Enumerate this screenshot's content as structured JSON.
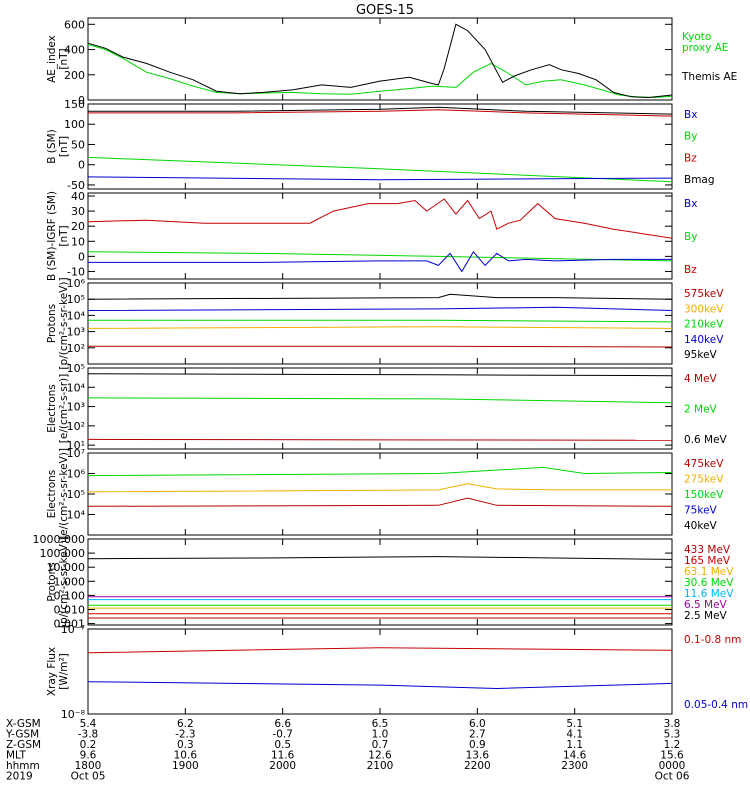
{
  "title": "GOES-15",
  "colors": {
    "black": "#000000",
    "green": "#00d800",
    "red": "#c80000",
    "blue": "#0000d0",
    "orange": "#f0b000",
    "cyan": "#00b4ff",
    "dkred": "#b40000",
    "magenta": "#c800c8",
    "purple": "#a000a0"
  },
  "chart_data": [
    {
      "id": "ae",
      "type": "line",
      "ylabel": [
        "AE_index",
        "[nT]"
      ],
      "ylim": [
        0,
        650
      ],
      "yscale": "linear",
      "ticks": [
        {
          "v": 0,
          "t": "0"
        },
        {
          "v": 200,
          "t": "200"
        },
        {
          "v": 400,
          "t": "400"
        },
        {
          "v": 600,
          "t": "600"
        }
      ],
      "series": [
        {
          "name": "Kyoto proxy AE",
          "name_lines": [
            "Kyoto",
            "proxy AE"
          ],
          "color": "green",
          "x": [
            0,
            0.03,
            0.06,
            0.1,
            0.14,
            0.18,
            0.22,
            0.26,
            0.3,
            0.35,
            0.4,
            0.45,
            0.5,
            0.55,
            0.59,
            0.63,
            0.66,
            0.69,
            0.72,
            0.75,
            0.78,
            0.81,
            0.85,
            0.88,
            0.91,
            0.94,
            0.97,
            1
          ],
          "y": [
            440,
            400,
            330,
            220,
            170,
            110,
            60,
            50,
            55,
            60,
            50,
            45,
            70,
            90,
            110,
            100,
            220,
            290,
            210,
            120,
            150,
            160,
            120,
            80,
            40,
            25,
            20,
            30
          ]
        },
        {
          "name": "Themis AE",
          "color": "black",
          "x": [
            0,
            0.03,
            0.06,
            0.1,
            0.14,
            0.18,
            0.22,
            0.26,
            0.3,
            0.35,
            0.4,
            0.45,
            0.5,
            0.55,
            0.59,
            0.6,
            0.61,
            0.63,
            0.65,
            0.68,
            0.71,
            0.73,
            0.76,
            0.79,
            0.81,
            0.84,
            0.87,
            0.9,
            0.93,
            0.96,
            1
          ],
          "y": [
            450,
            410,
            340,
            290,
            220,
            160,
            70,
            50,
            60,
            80,
            120,
            100,
            150,
            180,
            130,
            120,
            250,
            600,
            550,
            400,
            140,
            190,
            240,
            280,
            240,
            210,
            160,
            60,
            25,
            20,
            40
          ]
        }
      ]
    },
    {
      "id": "bsm",
      "type": "line",
      "ylabel": [
        "B (SM)",
        "[nT]"
      ],
      "ylim": [
        -60,
        150
      ],
      "yscale": "linear",
      "ticks": [
        {
          "v": -50,
          "t": "-50"
        },
        {
          "v": 0,
          "t": "0"
        },
        {
          "v": 50,
          "t": "50"
        },
        {
          "v": 100,
          "t": "100"
        },
        {
          "v": 150,
          "t": "150"
        }
      ],
      "legend": [
        {
          "name": "Bx",
          "color": "blue"
        },
        {
          "name": "By",
          "color": "green"
        },
        {
          "name": "Bz",
          "color": "red"
        },
        {
          "name": "Bmag",
          "color": "black"
        }
      ],
      "series": [
        {
          "name": "Bmag",
          "color": "black",
          "x": [
            0,
            0.25,
            0.5,
            0.6,
            0.75,
            1
          ],
          "y": [
            132,
            132,
            137,
            142,
            132,
            125
          ]
        },
        {
          "name": "Bz",
          "color": "red",
          "x": [
            0,
            0.25,
            0.5,
            0.6,
            0.75,
            1
          ],
          "y": [
            128,
            128,
            132,
            136,
            128,
            120
          ]
        },
        {
          "name": "By",
          "color": "green",
          "x": [
            0,
            0.5,
            1
          ],
          "y": [
            18,
            -10,
            -42
          ]
        },
        {
          "name": "Bx",
          "color": "blue",
          "x": [
            0,
            0.5,
            1
          ],
          "y": [
            -30,
            -37,
            -33
          ]
        }
      ]
    },
    {
      "id": "bigrf",
      "type": "line",
      "ylabel": [
        "B (SM)-IGRF (SM)",
        "[nT]"
      ],
      "ylim": [
        -15,
        42
      ],
      "yscale": "linear",
      "ticks": [
        {
          "v": -10,
          "t": "-10"
        },
        {
          "v": 0,
          "t": "0"
        },
        {
          "v": 10,
          "t": "10"
        },
        {
          "v": 20,
          "t": "20"
        },
        {
          "v": 30,
          "t": "30"
        },
        {
          "v": 40,
          "t": "40"
        }
      ],
      "legend": [
        {
          "name": "Bx",
          "color": "blue"
        },
        {
          "name": "By",
          "color": "green"
        },
        {
          "name": "Bz",
          "color": "red"
        }
      ],
      "series": [
        {
          "name": "Bz",
          "color": "red",
          "x": [
            0,
            0.1,
            0.2,
            0.3,
            0.38,
            0.42,
            0.48,
            0.53,
            0.56,
            0.58,
            0.61,
            0.63,
            0.65,
            0.67,
            0.69,
            0.7,
            0.72,
            0.74,
            0.77,
            0.8,
            0.85,
            0.9,
            0.95,
            1
          ],
          "y": [
            23,
            24,
            22,
            22,
            22,
            30,
            35,
            35,
            37,
            30,
            38,
            28,
            37,
            25,
            30,
            18,
            22,
            24,
            35,
            25,
            22,
            18,
            15,
            12
          ]
        },
        {
          "name": "By",
          "color": "green",
          "x": [
            0,
            0.3,
            0.6,
            1
          ],
          "y": [
            3,
            2,
            0,
            -3
          ]
        },
        {
          "name": "Bx",
          "color": "blue",
          "x": [
            0,
            0.3,
            0.5,
            0.55,
            0.58,
            0.6,
            0.62,
            0.64,
            0.66,
            0.68,
            0.7,
            0.72,
            0.75,
            0.8,
            0.9,
            1
          ],
          "y": [
            -4,
            -4,
            -3,
            -3,
            -3,
            -6,
            2,
            -10,
            3,
            -6,
            2,
            -3,
            -2,
            -3,
            -2,
            -2
          ]
        }
      ]
    },
    {
      "id": "protons1",
      "type": "line",
      "ylabel": [
        "Protons",
        "[p/(cm²-s-sr-keV)]"
      ],
      "ylim": [
        1,
        6
      ],
      "yscale": "log",
      "ticks": [
        {
          "v": 2,
          "t": "10²"
        },
        {
          "v": 3,
          "t": "10³"
        },
        {
          "v": 4,
          "t": "10⁴"
        },
        {
          "v": 5,
          "t": "10⁵"
        },
        {
          "v": 6,
          "t": "10⁶"
        }
      ],
      "legend": [
        {
          "name": "575keV",
          "color": "dkred"
        },
        {
          "name": "300keV",
          "color": "orange"
        },
        {
          "name": "210keV",
          "color": "green"
        },
        {
          "name": "140keV",
          "color": "blue"
        },
        {
          "name": "95keV",
          "color": "black"
        }
      ],
      "series": [
        {
          "name": "95keV",
          "color": "black",
          "x": [
            0,
            0.6,
            0.62,
            0.7,
            0.8,
            1
          ],
          "y": [
            5,
            5.1,
            5.3,
            5.1,
            5.1,
            5
          ]
        },
        {
          "name": "140keV",
          "color": "blue",
          "x": [
            0,
            0.6,
            0.8,
            1
          ],
          "y": [
            4.3,
            4.4,
            4.5,
            4.3
          ]
        },
        {
          "name": "210keV",
          "color": "green",
          "x": [
            0,
            0.6,
            1
          ],
          "y": [
            3.7,
            3.7,
            3.6
          ]
        },
        {
          "name": "300keV",
          "color": "orange",
          "x": [
            0,
            0.6,
            1
          ],
          "y": [
            3.2,
            3.3,
            3.2
          ]
        },
        {
          "name": "575keV",
          "color": "dkred",
          "x": [
            0,
            0.6,
            1
          ],
          "y": [
            2.1,
            2.1,
            2.05
          ]
        }
      ]
    },
    {
      "id": "electrons1",
      "type": "line",
      "ylabel": [
        "Electrons",
        "[e/(cm²-s-sr)]"
      ],
      "ylim": [
        0.8,
        5
      ],
      "yscale": "log",
      "ticks": [
        {
          "v": 1,
          "t": "10¹"
        },
        {
          "v": 2,
          "t": "10²"
        },
        {
          "v": 3,
          "t": "10³"
        },
        {
          "v": 4,
          "t": "10⁴"
        },
        {
          "v": 5,
          "t": "10⁵"
        }
      ],
      "legend": [
        {
          "name": "4 MeV",
          "color": "dkred"
        },
        {
          "name": "2 MeV",
          "color": "green"
        },
        {
          "name": "0.6 MeV",
          "color": "black"
        }
      ],
      "series": [
        {
          "name": "0.6 MeV",
          "color": "black",
          "x": [
            0,
            0.6,
            1
          ],
          "y": [
            4.7,
            4.65,
            4.6
          ]
        },
        {
          "name": "2 MeV",
          "color": "green",
          "x": [
            0,
            0.6,
            1
          ],
          "y": [
            3.45,
            3.4,
            3.2
          ]
        },
        {
          "name": "4 MeV",
          "color": "dkred",
          "x": [
            0,
            1
          ],
          "y": [
            1.3,
            1.25
          ]
        }
      ]
    },
    {
      "id": "electrons2",
      "type": "line",
      "ylabel": [
        "Electrons",
        "[e/(cm²-s-sr-keV)]"
      ],
      "ylim": [
        3,
        7
      ],
      "yscale": "log",
      "ticks": [
        {
          "v": 4,
          "t": "10⁴"
        },
        {
          "v": 5,
          "t": "10⁵"
        },
        {
          "v": 6,
          "t": "10⁶"
        },
        {
          "v": 7,
          "t": "10⁷"
        }
      ],
      "legend": [
        {
          "name": "475keV",
          "color": "dkred"
        },
        {
          "name": "275keV",
          "color": "orange"
        },
        {
          "name": "150keV",
          "color": "green"
        },
        {
          "name": "75keV",
          "color": "blue"
        },
        {
          "name": "40keV",
          "color": "black"
        }
      ],
      "series": [
        {
          "name": "150keV",
          "color": "green",
          "x": [
            0,
            0.6,
            0.78,
            0.85,
            1
          ],
          "y": [
            5.9,
            6,
            6.3,
            6,
            6.05
          ]
        },
        {
          "name": "275keV",
          "color": "orange",
          "x": [
            0,
            0.6,
            0.65,
            0.7,
            0.8,
            1
          ],
          "y": [
            5.1,
            5.2,
            5.5,
            5.25,
            5.2,
            5.2
          ]
        },
        {
          "name": "475keV",
          "color": "dkred",
          "x": [
            0,
            0.6,
            0.65,
            0.7,
            1
          ],
          "y": [
            4.4,
            4.45,
            4.8,
            4.45,
            4.4
          ]
        }
      ]
    },
    {
      "id": "protons2",
      "type": "line",
      "ylabel": [
        "Protons",
        "[p/(cm²-s-sr-keV)]"
      ],
      "ylim": [
        -3.1,
        3
      ],
      "yscale": "log",
      "ticks": [
        {
          "v": -3,
          "t": "0.001"
        },
        {
          "v": -2,
          "t": "0.010"
        },
        {
          "v": -1,
          "t": "0.100"
        },
        {
          "v": 0,
          "t": "1.000"
        },
        {
          "v": 1,
          "t": "10.000"
        },
        {
          "v": 2,
          "t": "100.000"
        },
        {
          "v": 3,
          "t": "1000.000"
        }
      ],
      "legend": [
        {
          "name": "433 MeV",
          "color": "dkred"
        },
        {
          "name": "165 MeV",
          "color": "red"
        },
        {
          "name": "63.1 MeV",
          "color": "orange"
        },
        {
          "name": "30.6 MeV",
          "color": "green"
        },
        {
          "name": "11.6 MeV",
          "color": "cyan"
        },
        {
          "name": "6.5 MeV",
          "color": "purple"
        },
        {
          "name": "2.5 MeV",
          "color": "black"
        }
      ],
      "series": [
        {
          "name": "2.5 MeV",
          "color": "black",
          "x": [
            0,
            0.3,
            0.6,
            0.8,
            1
          ],
          "y": [
            1.6,
            1.65,
            1.75,
            1.65,
            1.55
          ]
        },
        {
          "name": "6.5 MeV",
          "color": "purple",
          "x": [
            0,
            1
          ],
          "y": [
            -1.1,
            -1.1
          ]
        },
        {
          "name": "11.6 MeV",
          "color": "cyan",
          "x": [
            0,
            1
          ],
          "y": [
            -1.3,
            -1.3
          ]
        },
        {
          "name": "30.6 MeV",
          "color": "green",
          "x": [
            0,
            1
          ],
          "y": [
            -1.7,
            -1.7
          ]
        },
        {
          "name": "63.1 MeV",
          "color": "orange",
          "x": [
            0,
            1
          ],
          "y": [
            -1.9,
            -1.9
          ]
        },
        {
          "name": "165 MeV",
          "color": "red",
          "x": [
            0,
            1
          ],
          "y": [
            -2.3,
            -2.3
          ]
        },
        {
          "name": "433 MeV",
          "color": "dkred",
          "x": [
            0,
            1
          ],
          "y": [
            -2.6,
            -2.6
          ]
        }
      ]
    },
    {
      "id": "xray",
      "type": "line",
      "ylabel": [
        "Xray Flux",
        "[W/m²]"
      ],
      "ylim": [
        -8,
        -7
      ],
      "yscale": "log",
      "ticks": [
        {
          "v": -8,
          "t": "10⁻⁸"
        },
        {
          "v": -7,
          "t": "10⁻⁷"
        }
      ],
      "legend": [
        {
          "name": "0.1-0.8 nm",
          "color": "red"
        },
        {
          "name": "0.05-0.4 nm",
          "color": "blue"
        }
      ],
      "series": [
        {
          "name": "0.1-0.8 nm",
          "color": "red",
          "x": [
            0,
            0.5,
            1
          ],
          "y": [
            -7.28,
            -7.22,
            -7.25
          ]
        },
        {
          "name": "0.05-0.4 nm",
          "color": "blue",
          "x": [
            0,
            0.5,
            0.7,
            1
          ],
          "y": [
            -7.62,
            -7.66,
            -7.7,
            -7.64
          ]
        }
      ]
    }
  ],
  "xaxis": {
    "rows": [
      {
        "label": "X-GSM",
        "values": [
          "5.4",
          "6.2",
          "6.6",
          "6.5",
          "6.0",
          "5.1",
          "3.8"
        ]
      },
      {
        "label": "Y-GSM",
        "values": [
          "-3.8",
          "-2.3",
          "-0.7",
          "1.0",
          "2.7",
          "4.1",
          "5.3"
        ]
      },
      {
        "label": "Z-GSM",
        "values": [
          "0.2",
          "0.3",
          "0.5",
          "0.7",
          "0.9",
          "1.1",
          "1.2"
        ]
      },
      {
        "label": "MLT",
        "values": [
          "9.6",
          "10.6",
          "11.6",
          "12.6",
          "13.6",
          "14.6",
          "15.6"
        ]
      },
      {
        "label": "hhmm",
        "values": [
          "1800",
          "1900",
          "2000",
          "2100",
          "2200",
          "2300",
          "0000"
        ]
      },
      {
        "label": "2019",
        "values": [
          "Oct 05",
          "",
          "",
          "",
          "",
          "",
          "Oct 06"
        ]
      }
    ]
  }
}
